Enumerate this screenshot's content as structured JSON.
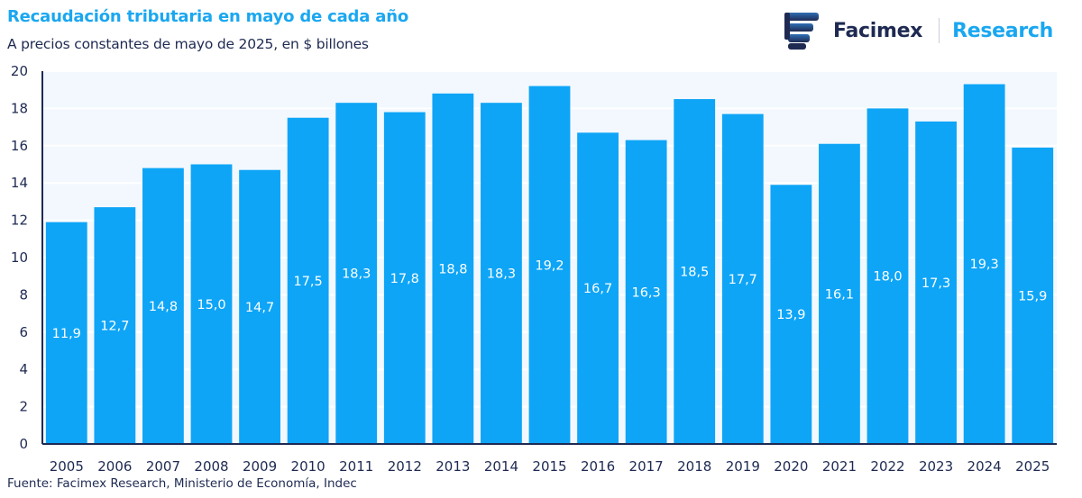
{
  "header": {
    "title": "Recaudación tributaria en mayo de cada año",
    "subtitle": "A precios constantes de mayo de 2025, en $ billones"
  },
  "logo": {
    "icon": "facimex-logo-icon",
    "name": "Facimex",
    "division": "Research"
  },
  "footer": {
    "source": "Fuente: Facimex Research, Ministerio de Economía, Indec"
  },
  "colors": {
    "bar": "#0ea5f7",
    "plot_background": "#f2f8fe",
    "axis": "#1e2a52",
    "title": "#1aa7f0"
  },
  "chart_data": {
    "type": "bar",
    "title": "Recaudación tributaria en mayo de cada año",
    "subtitle": "A precios constantes de mayo de 2025, en $ billones",
    "xlabel": "",
    "ylabel": "",
    "ylim": [
      0,
      20
    ],
    "yticks": [
      "0",
      "2",
      "4",
      "6",
      "8",
      "10",
      "12",
      "14",
      "16",
      "18",
      "20"
    ],
    "grid": true,
    "legend": "none",
    "categories": [
      "2005",
      "2006",
      "2007",
      "2008",
      "2009",
      "2010",
      "2011",
      "2012",
      "2013",
      "2014",
      "2015",
      "2016",
      "2017",
      "2018",
      "2019",
      "2020",
      "2021",
      "2022",
      "2023",
      "2024",
      "2025"
    ],
    "values": [
      11.9,
      12.7,
      14.8,
      15.0,
      14.7,
      17.5,
      18.3,
      17.8,
      18.8,
      18.3,
      19.2,
      16.7,
      16.3,
      18.5,
      17.7,
      13.9,
      16.1,
      18.0,
      17.3,
      19.3,
      15.9
    ],
    "data_labels": [
      "11,9",
      "12,7",
      "14,8",
      "15,0",
      "14,7",
      "17,5",
      "18,3",
      "17,8",
      "18,8",
      "18,3",
      "19,2",
      "16,7",
      "16,3",
      "18,5",
      "17,7",
      "13,9",
      "16,1",
      "18,0",
      "17,3",
      "19,3",
      "15,9"
    ]
  }
}
